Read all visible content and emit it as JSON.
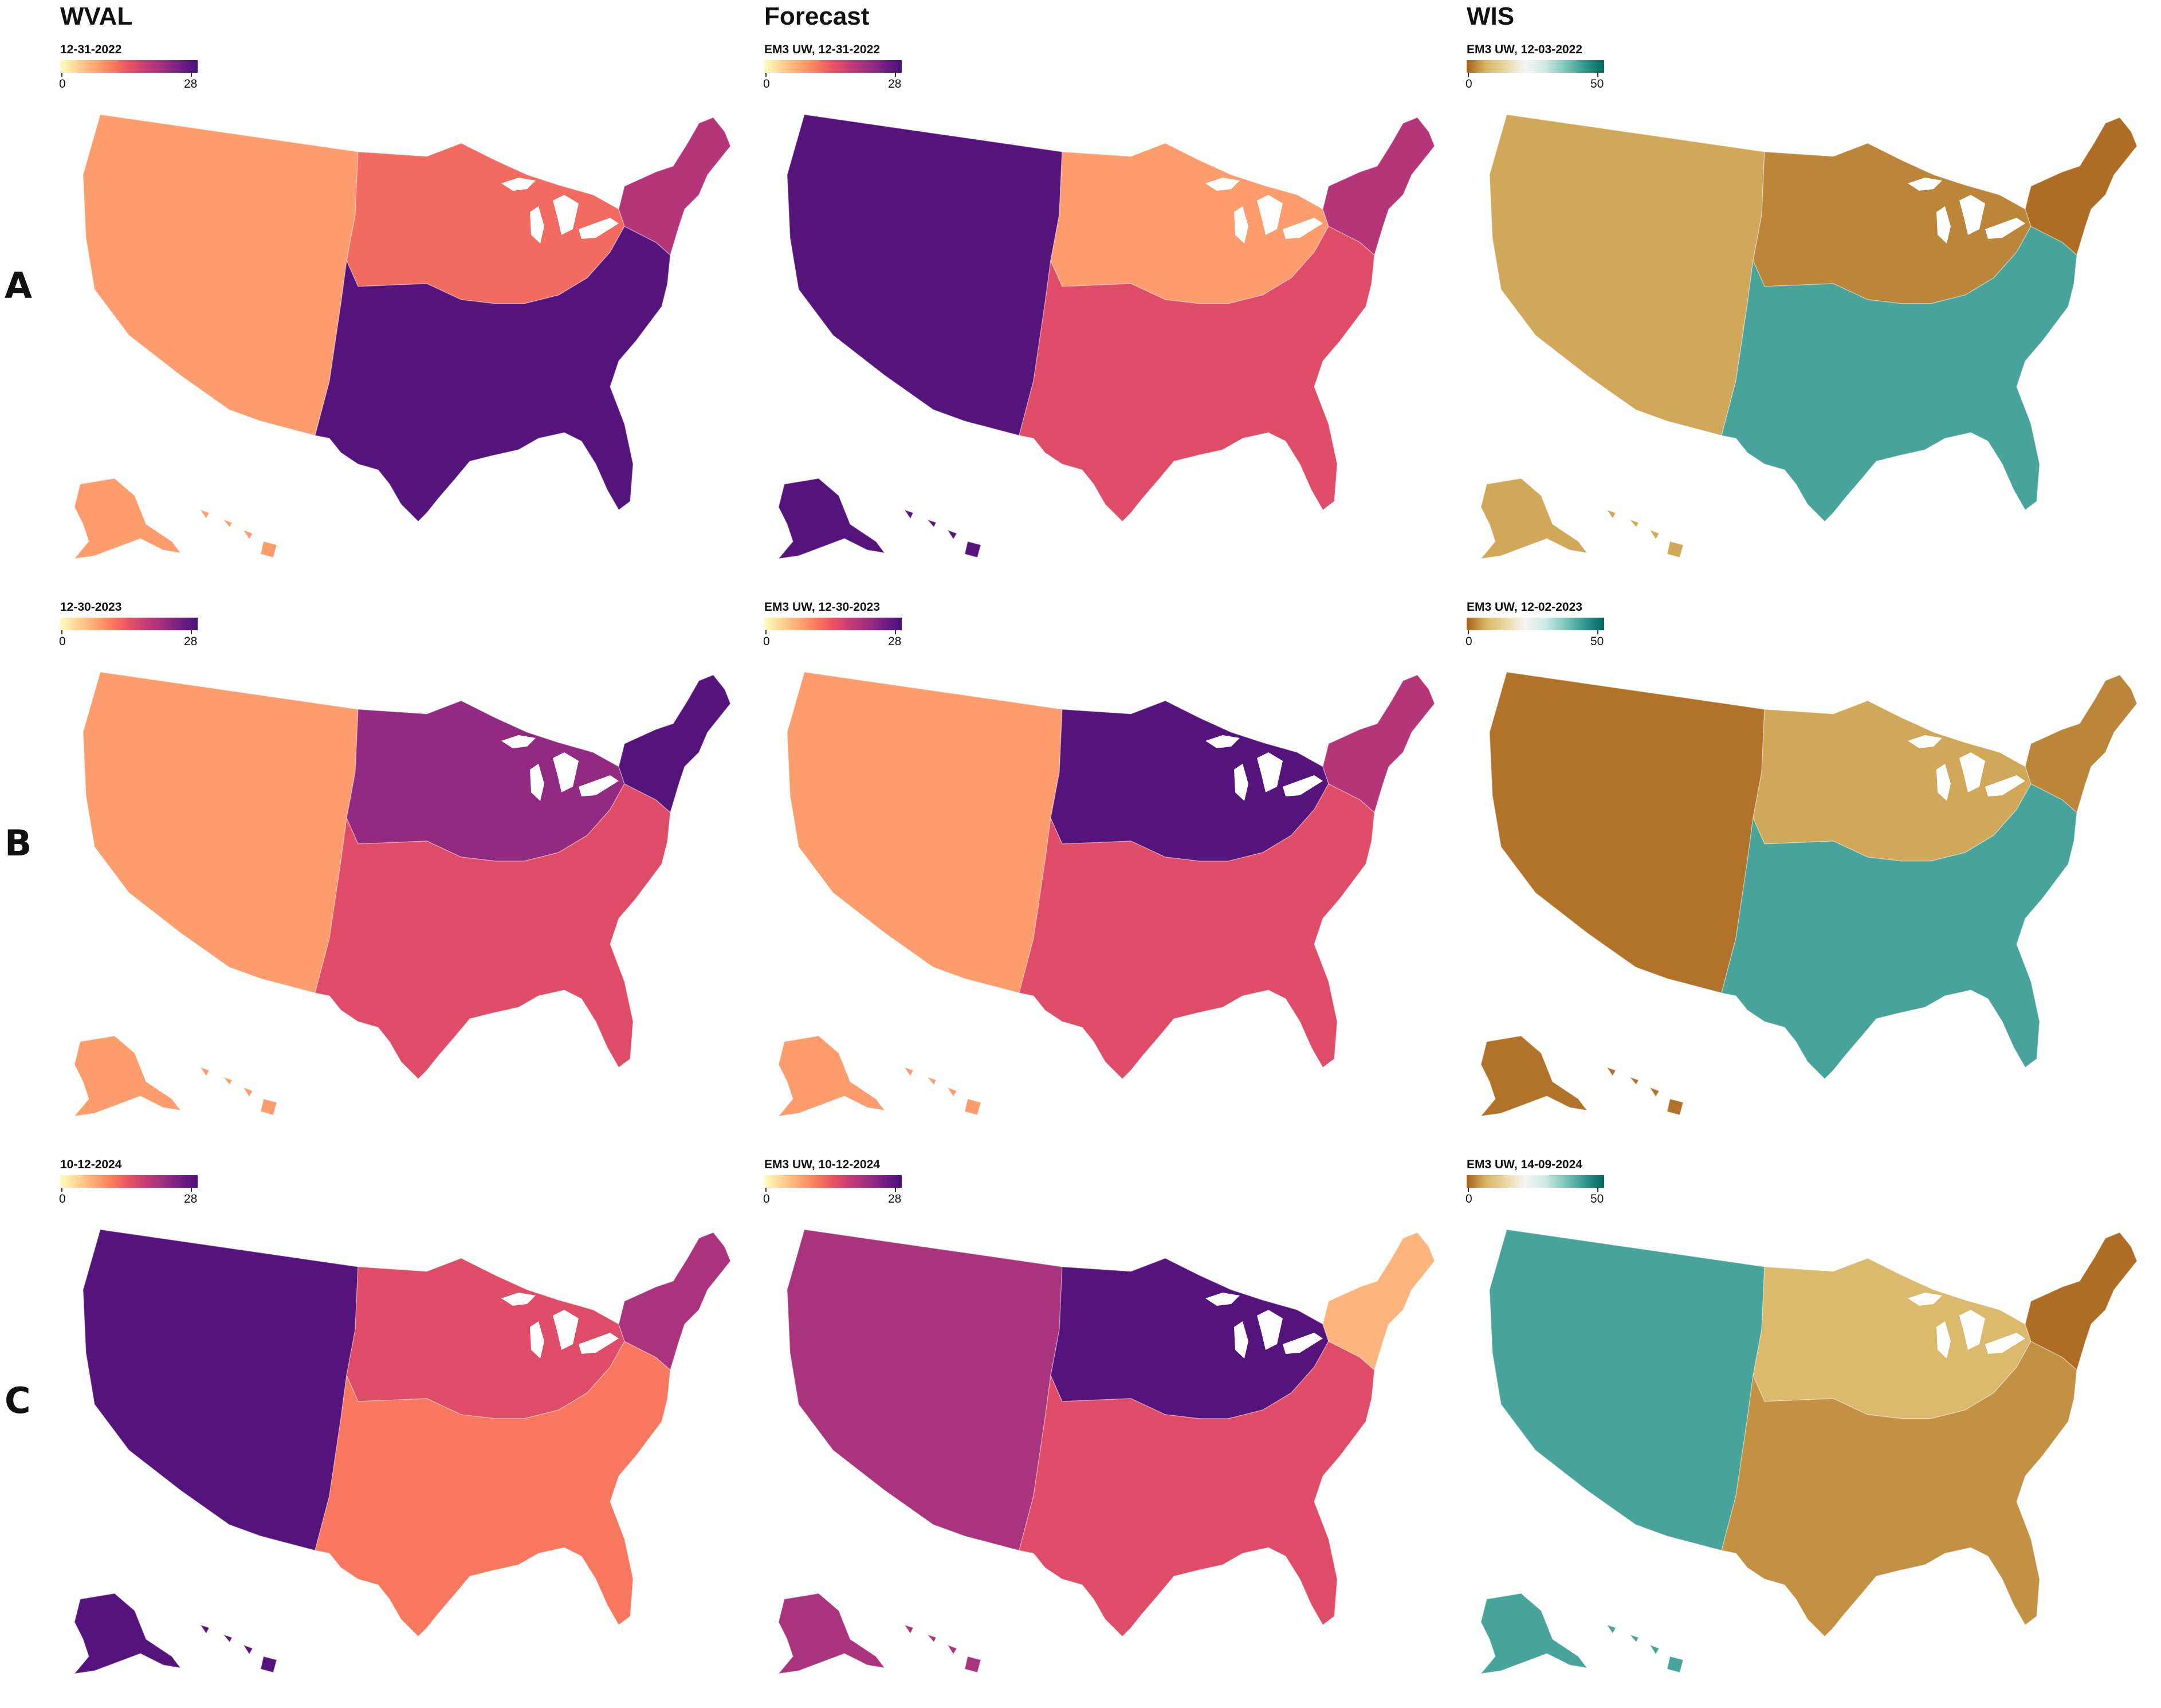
{
  "columns": {
    "wval": "WVAL",
    "forecast": "Forecast",
    "wis": "WIS"
  },
  "rows": [
    {
      "label": "A",
      "panels": [
        {
          "legend_title": "12-31-2022",
          "legend_min": "0",
          "legend_max": "28",
          "scale": "magma",
          "region_values": {
            "west": 8,
            "midwest": 12,
            "south": 27,
            "northeast": 19
          }
        },
        {
          "legend_title": "EM3 UW, 12-31-2022",
          "legend_min": "0",
          "legend_max": "28",
          "scale": "magma",
          "region_values": {
            "west": 27,
            "midwest": 8,
            "south": 15,
            "northeast": 19
          }
        },
        {
          "legend_title": "EM3 UW, 12-03-2022",
          "legend_min": "0",
          "legend_max": "50",
          "scale": "brbg",
          "region_values": {
            "west": 6,
            "midwest": 3,
            "south": 41,
            "northeast": 1
          }
        }
      ]
    },
    {
      "label": "B",
      "panels": [
        {
          "legend_title": "12-30-2023",
          "legend_min": "0",
          "legend_max": "28",
          "scale": "magma",
          "region_values": {
            "west": 8,
            "midwest": 22,
            "south": 15,
            "northeast": 27
          }
        },
        {
          "legend_title": "EM3 UW, 12-30-2023",
          "legend_min": "0",
          "legend_max": "28",
          "scale": "magma",
          "region_values": {
            "west": 8,
            "midwest": 27,
            "south": 15,
            "northeast": 19
          }
        },
        {
          "legend_title": "EM3 UW, 12-02-2023",
          "legend_min": "0",
          "legend_max": "50",
          "scale": "brbg",
          "region_values": {
            "west": 1.5,
            "midwest": 6,
            "south": 41,
            "northeast": 3
          }
        }
      ]
    },
    {
      "label": "C",
      "panels": [
        {
          "legend_title": "10-12-2024",
          "legend_min": "0",
          "legend_max": "28",
          "scale": "magma",
          "region_values": {
            "west": 27,
            "midwest": 15,
            "south": 11,
            "northeast": 20
          }
        },
        {
          "legend_title": "EM3 UW, 10-12-2024",
          "legend_min": "0",
          "legend_max": "28",
          "scale": "magma",
          "region_values": {
            "west": 20,
            "midwest": 27,
            "south": 15,
            "northeast": 6
          }
        },
        {
          "legend_title": "EM3 UW, 14-09-2024",
          "legend_min": "0",
          "legend_max": "50",
          "scale": "brbg",
          "region_values": {
            "west": 41,
            "midwest": 8,
            "south": 4,
            "northeast": 1
          }
        }
      ]
    }
  ],
  "colors": {
    "magma_stops": [
      "#fcfdbf",
      "#fed395",
      "#fea973",
      "#fa7d5e",
      "#e85362",
      "#c43c75",
      "#9e2f7f",
      "#721f81",
      "#4a1079"
    ],
    "brbg_stops": [
      "#a6611a",
      "#d9b665",
      "#ecd9a6",
      "#f5f5f5",
      "#cdeae4",
      "#7fc7ba",
      "#35978f",
      "#01665e"
    ]
  }
}
